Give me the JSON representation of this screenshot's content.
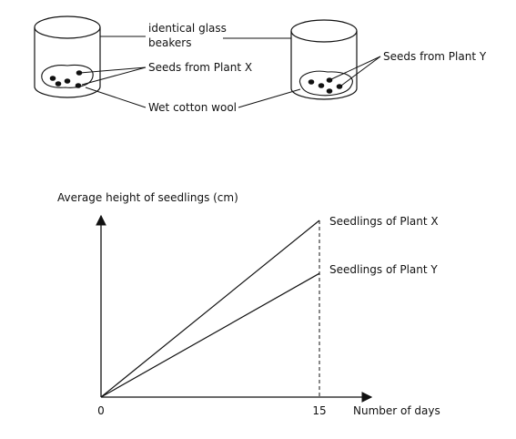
{
  "apparatus": {
    "beakers_label_line1": "identical glass",
    "beakers_label_line2": "beakers",
    "seeds_x_label": "Seeds from Plant X",
    "seeds_y_label": "Seeds from Plant Y",
    "cotton_label": "Wet cotton wool"
  },
  "chart_data": {
    "type": "line",
    "ylabel": "Average height of seedlings (cm)",
    "xlabel": "Number of days",
    "x_ticks": [
      "0",
      "15"
    ],
    "xlim": [
      0,
      15
    ],
    "y_values_shown": false,
    "series": [
      {
        "name": "Seedlings of Plant X",
        "x": [
          0,
          15
        ],
        "y_relative": [
          0,
          1.0
        ]
      },
      {
        "name": "Seedlings of Plant Y",
        "x": [
          0,
          15
        ],
        "y_relative": [
          0,
          0.7
        ]
      }
    ],
    "marker_line_at_x": 15
  }
}
